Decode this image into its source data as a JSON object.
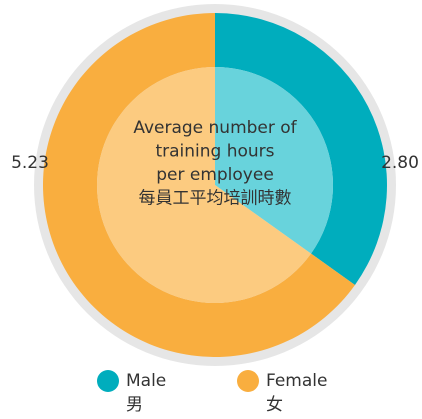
{
  "chart_data": {
    "type": "pie",
    "center_label": [
      "Average number of",
      "training hours",
      "per employee",
      "每員工平均培訓時數"
    ],
    "categories": [
      "Male",
      "Female"
    ],
    "categories_zh": [
      "男",
      "女"
    ],
    "values": [
      2.8,
      5.23
    ],
    "value_labels": [
      "2.80",
      "5.23"
    ],
    "colors": [
      "#00adbd",
      "#f9ae3f"
    ],
    "inner_colors": [
      "#68d3dc",
      "#fccb80"
    ]
  }
}
